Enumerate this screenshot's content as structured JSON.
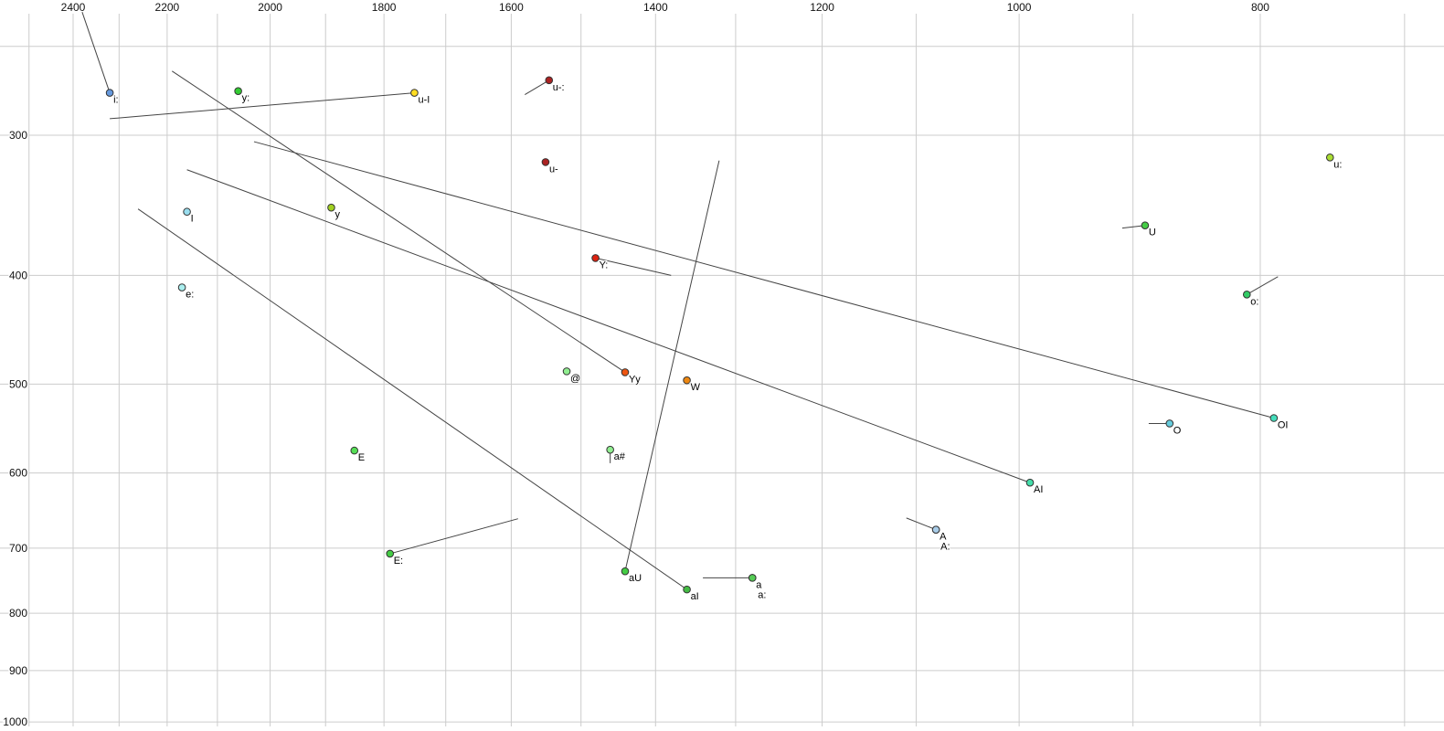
{
  "styles": {
    "background": "#ffffff",
    "grid_color": "#cccccc",
    "line_color": "#444444",
    "point_stroke": "#333333",
    "label_color": "#000000",
    "axis_label_color": "#111111"
  },
  "chart_data": {
    "type": "scatter",
    "description": "Vowel formant plot: F2 (Hz, log scale, reversed) across top axis vs F1 (Hz, log scale, inverted) on left axis; phonetic symbols with diphthong trajectory lines",
    "x_axis": {
      "scale": "log",
      "reversed": true,
      "tick_labels": [
        "2400",
        "2200",
        "2000",
        "1800",
        "1600",
        "1400",
        "1200",
        "1000",
        "800"
      ],
      "gridlines": [
        2500,
        2400,
        2300,
        2200,
        2100,
        2000,
        1900,
        1800,
        1700,
        1600,
        1500,
        1400,
        1300,
        1200,
        1100,
        1000,
        900,
        800,
        700
      ]
    },
    "y_axis": {
      "scale": "log",
      "inverted": true,
      "tick_labels": [
        "300",
        "400",
        "500",
        "600",
        "700",
        "800",
        "900",
        "1000"
      ],
      "gridlines": [
        250,
        300,
        400,
        500,
        600,
        700,
        800,
        900,
        1000
      ]
    },
    "grid": true,
    "legend": false,
    "points": [
      {
        "label": "i:",
        "f2": 2320,
        "f1": 275,
        "color": "#6699dd",
        "tail": [
          2380,
          233
        ]
      },
      {
        "label": "y:",
        "f2": 2060,
        "f1": 274,
        "color": "#33cc33"
      },
      {
        "label": "u-I",
        "f2": 1750,
        "f1": 275,
        "color": "#ffdd22",
        "tail": [
          2320,
          290
        ]
      },
      {
        "label": "u-:",
        "f2": 1545,
        "f1": 268,
        "color": "#aa2222",
        "tail": [
          1580,
          276
        ]
      },
      {
        "label": "u-",
        "f2": 1550,
        "f1": 317,
        "color": "#aa2222"
      },
      {
        "label": "u:",
        "f2": 750,
        "f1": 314,
        "color": "#aadd33"
      },
      {
        "label": "y",
        "f2": 1890,
        "f1": 348,
        "color": "#a0d020"
      },
      {
        "label": "I",
        "f2": 2160,
        "f1": 351,
        "color": "#99ddee"
      },
      {
        "label": "U",
        "f2": 890,
        "f1": 361,
        "color": "#44cc44",
        "tail": [
          909,
          363
        ]
      },
      {
        "label": "Y:",
        "f2": 1480,
        "f1": 386,
        "color": "#dd2211",
        "tail": [
          1380,
          400
        ]
      },
      {
        "label": "e:",
        "f2": 2170,
        "f1": 410,
        "color": "#aaeeee"
      },
      {
        "label": "o:",
        "f2": 810,
        "f1": 416,
        "color": "#33cc66",
        "tail": [
          787,
          401
        ]
      },
      {
        "label": "@",
        "f2": 1520,
        "f1": 487,
        "color": "#90ee90"
      },
      {
        "label": "Yy",
        "f2": 1440,
        "f1": 488,
        "color": "#ee5511",
        "tail": [
          2190,
          263
        ]
      },
      {
        "label": "W",
        "f2": 1360,
        "f1": 496,
        "color": "#ee8811"
      },
      {
        "label": "O",
        "f2": 870,
        "f1": 542,
        "color": "#66ccdd",
        "tail": [
          887,
          542
        ]
      },
      {
        "label": "OI",
        "f2": 790,
        "f1": 536,
        "color": "#44ddbb",
        "tail": [
          2030,
          304
        ]
      },
      {
        "label": "E",
        "f2": 1850,
        "f1": 573,
        "color": "#55dd55"
      },
      {
        "label": "a#",
        "f2": 1460,
        "f1": 572,
        "color": "#90ee90",
        "tail": [
          1460,
          588
        ]
      },
      {
        "label": "AI",
        "f2": 990,
        "f1": 612,
        "color": "#44ddaa",
        "tail": [
          2160,
          322
        ]
      },
      {
        "label": "A",
        "f2": 1080,
        "f1": 674,
        "color": "#a8cce8",
        "tail": [
          1110,
          658
        ]
      },
      {
        "label": "A:",
        "f2": 1080,
        "f1": 674,
        "color": "#a8cce8",
        "label_offset": [
          5,
          22
        ]
      },
      {
        "label": "E:",
        "f2": 1790,
        "f1": 708,
        "color": "#44cc44",
        "tail": [
          1590,
          659
        ]
      },
      {
        "label": "aU",
        "f2": 1440,
        "f1": 734,
        "color": "#44cc44",
        "tail": [
          1320,
          316
        ]
      },
      {
        "label": "a",
        "f2": 1280,
        "f1": 744,
        "color": "#55cc55",
        "tail": [
          1340,
          744
        ]
      },
      {
        "label": "a:",
        "f2": 1280,
        "f1": 744,
        "color": "#55cc55",
        "label_offset": [
          6,
          22
        ]
      },
      {
        "label": "aI",
        "f2": 1360,
        "f1": 762,
        "color": "#44bb44",
        "tail": [
          2260,
          349
        ]
      }
    ]
  }
}
